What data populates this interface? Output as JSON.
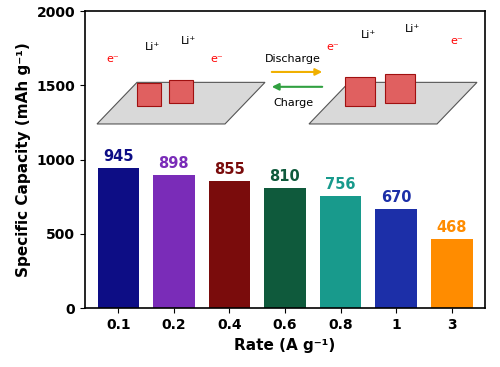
{
  "chart_data": {
    "type": "bar",
    "x_label": "Rate (A g⁻¹)",
    "y_label": "Specific Capacity (mAh g⁻¹)",
    "categories": [
      "0.1",
      "0.2",
      "0.4",
      "0.6",
      "0.8",
      "1",
      "3"
    ],
    "values": [
      945,
      898,
      855,
      810,
      756,
      670,
      468
    ],
    "colors": [
      "#0d0d85",
      "#7a2cb8",
      "#7a0c0c",
      "#0f5a3c",
      "#189a8c",
      "#1c2fa8",
      "#ff8c00"
    ],
    "data_labels": true,
    "ylim": [
      0,
      2000
    ],
    "yticks": [
      0,
      500,
      1000,
      1500,
      2000
    ],
    "grid": false,
    "annotations": [
      "Li⁺",
      "Li⁺",
      "e⁻",
      "e⁻",
      "Discharge",
      "Charge",
      "e⁻",
      "e⁻",
      "Li⁺",
      "Li⁺"
    ]
  }
}
